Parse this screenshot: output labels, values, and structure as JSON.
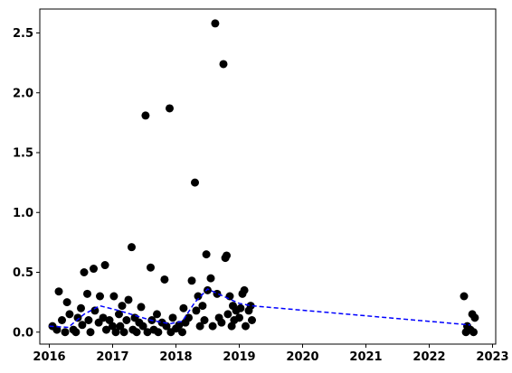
{
  "chart_data": {
    "type": "scatter",
    "title": "",
    "xlabel": "",
    "ylabel": "",
    "xlim": [
      2015.85,
      2023.05
    ],
    "ylim": [
      -0.1,
      2.7
    ],
    "x_ticks": [
      2016,
      2017,
      2018,
      2019,
      2020,
      2021,
      2022,
      2023
    ],
    "x_tick_labels": [
      "2016",
      "2017",
      "2018",
      "2019",
      "2020",
      "2021",
      "2022",
      "2023"
    ],
    "y_ticks": [
      0.0,
      0.5,
      1.0,
      1.5,
      2.0,
      2.5
    ],
    "y_tick_labels": [
      "0.0",
      "0.5",
      "1.0",
      "1.5",
      "2.0",
      "2.5"
    ],
    "grid": false,
    "colors": {
      "points": "#000000",
      "trend": "#0000ff"
    },
    "series": [
      {
        "style": "scatter",
        "points": [
          [
            2016.05,
            0.05
          ],
          [
            2016.12,
            0.02
          ],
          [
            2016.15,
            0.34
          ],
          [
            2016.2,
            0.1
          ],
          [
            2016.25,
            0.0
          ],
          [
            2016.28,
            0.25
          ],
          [
            2016.32,
            0.15
          ],
          [
            2016.38,
            0.02
          ],
          [
            2016.42,
            0.0
          ],
          [
            2016.45,
            0.12
          ],
          [
            2016.5,
            0.2
          ],
          [
            2016.52,
            0.06
          ],
          [
            2016.55,
            0.5
          ],
          [
            2016.6,
            0.32
          ],
          [
            2016.62,
            0.1
          ],
          [
            2016.65,
            0.0
          ],
          [
            2016.7,
            0.53
          ],
          [
            2016.72,
            0.18
          ],
          [
            2016.78,
            0.08
          ],
          [
            2016.8,
            0.3
          ],
          [
            2016.85,
            0.12
          ],
          [
            2016.88,
            0.56
          ],
          [
            2016.9,
            0.02
          ],
          [
            2016.95,
            0.1
          ],
          [
            2017.0,
            0.05
          ],
          [
            2017.02,
            0.3
          ],
          [
            2017.05,
            0.0
          ],
          [
            2017.1,
            0.15
          ],
          [
            2017.12,
            0.05
          ],
          [
            2017.15,
            0.22
          ],
          [
            2017.18,
            0.0
          ],
          [
            2017.22,
            0.1
          ],
          [
            2017.25,
            0.27
          ],
          [
            2017.3,
            0.71
          ],
          [
            2017.32,
            0.02
          ],
          [
            2017.35,
            0.12
          ],
          [
            2017.38,
            0.0
          ],
          [
            2017.42,
            0.08
          ],
          [
            2017.45,
            0.21
          ],
          [
            2017.48,
            0.05
          ],
          [
            2017.52,
            1.81
          ],
          [
            2017.55,
            0.0
          ],
          [
            2017.6,
            0.54
          ],
          [
            2017.62,
            0.1
          ],
          [
            2017.65,
            0.02
          ],
          [
            2017.7,
            0.15
          ],
          [
            2017.72,
            0.0
          ],
          [
            2017.78,
            0.08
          ],
          [
            2017.82,
            0.44
          ],
          [
            2017.85,
            0.05
          ],
          [
            2017.9,
            1.87
          ],
          [
            2017.92,
            0.0
          ],
          [
            2017.95,
            0.12
          ],
          [
            2018.0,
            0.03
          ],
          [
            2018.05,
            0.06
          ],
          [
            2018.1,
            0.0
          ],
          [
            2018.12,
            0.2
          ],
          [
            2018.15,
            0.08
          ],
          [
            2018.2,
            0.12
          ],
          [
            2018.25,
            0.43
          ],
          [
            2018.3,
            1.25
          ],
          [
            2018.32,
            0.18
          ],
          [
            2018.35,
            0.3
          ],
          [
            2018.38,
            0.05
          ],
          [
            2018.42,
            0.22
          ],
          [
            2018.45,
            0.1
          ],
          [
            2018.48,
            0.65
          ],
          [
            2018.5,
            0.35
          ],
          [
            2018.55,
            0.45
          ],
          [
            2018.58,
            0.05
          ],
          [
            2018.62,
            2.58
          ],
          [
            2018.65,
            0.32
          ],
          [
            2018.68,
            0.12
          ],
          [
            2018.72,
            0.08
          ],
          [
            2018.75,
            2.24
          ],
          [
            2018.78,
            0.62
          ],
          [
            2018.8,
            0.64
          ],
          [
            2018.82,
            0.15
          ],
          [
            2018.85,
            0.3
          ],
          [
            2018.88,
            0.05
          ],
          [
            2018.9,
            0.22
          ],
          [
            2018.92,
            0.1
          ],
          [
            2018.95,
            0.18
          ],
          [
            2019.0,
            0.12
          ],
          [
            2019.02,
            0.2
          ],
          [
            2019.05,
            0.32
          ],
          [
            2019.08,
            0.35
          ],
          [
            2019.1,
            0.05
          ],
          [
            2019.15,
            0.18
          ],
          [
            2019.18,
            0.22
          ],
          [
            2019.2,
            0.1
          ],
          [
            2022.55,
            0.3
          ],
          [
            2022.58,
            0.0
          ],
          [
            2022.6,
            0.05
          ],
          [
            2022.65,
            0.02
          ],
          [
            2022.68,
            0.15
          ],
          [
            2022.7,
            0.0
          ],
          [
            2022.72,
            0.12
          ]
        ]
      },
      {
        "style": "dashed-line",
        "points": [
          [
            2016.0,
            0.05
          ],
          [
            2016.3,
            0.04
          ],
          [
            2016.55,
            0.15
          ],
          [
            2016.8,
            0.22
          ],
          [
            2017.1,
            0.18
          ],
          [
            2017.35,
            0.14
          ],
          [
            2017.6,
            0.1
          ],
          [
            2017.9,
            0.07
          ],
          [
            2018.1,
            0.09
          ],
          [
            2018.3,
            0.25
          ],
          [
            2018.5,
            0.36
          ],
          [
            2018.75,
            0.3
          ],
          [
            2019.0,
            0.24
          ],
          [
            2019.2,
            0.22
          ],
          [
            2022.65,
            0.06
          ]
        ]
      }
    ]
  }
}
